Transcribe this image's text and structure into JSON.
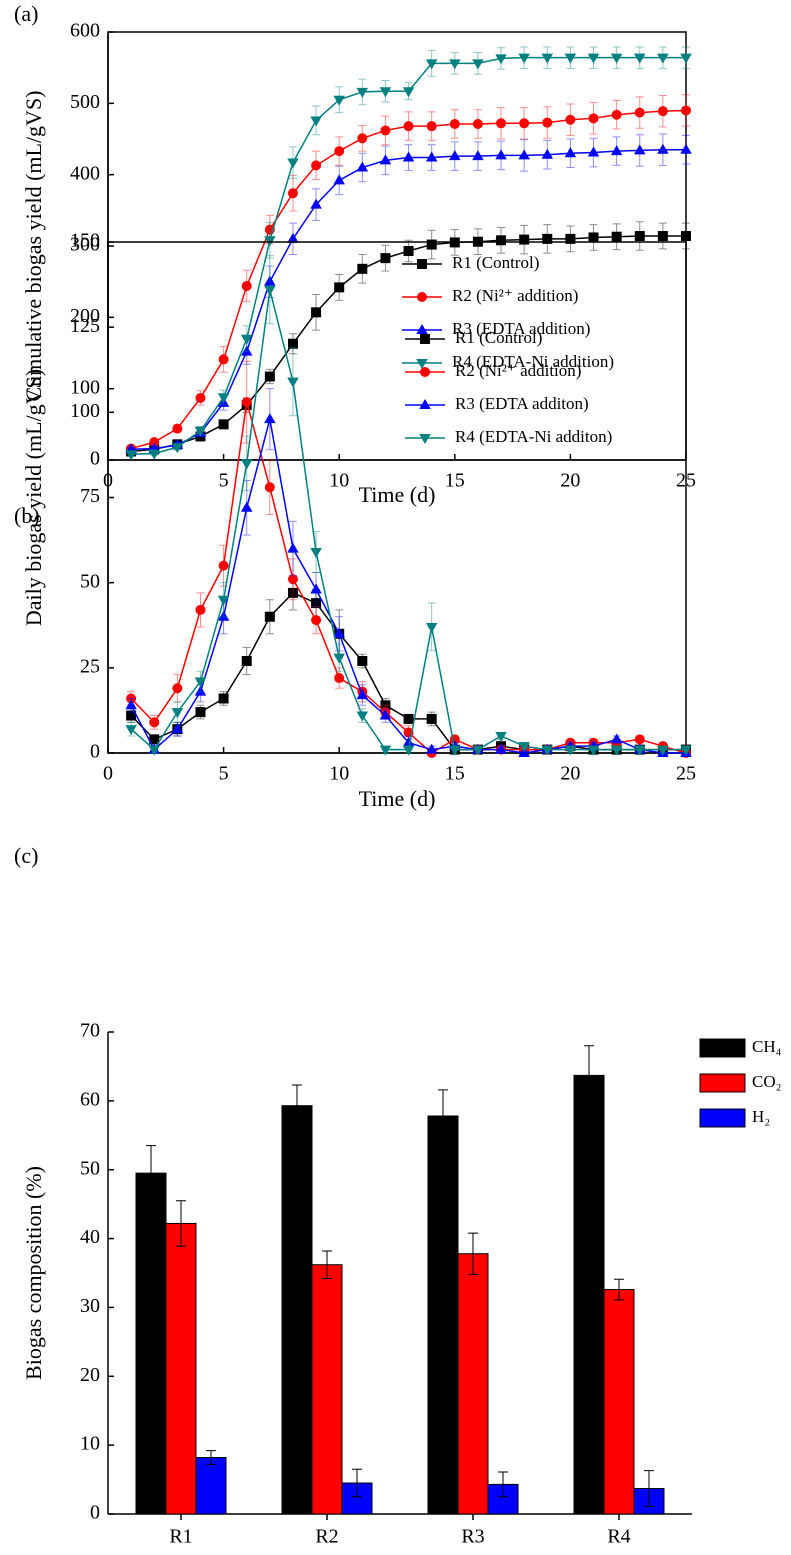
{
  "chart_data": [
    {
      "type": "line",
      "label": "(a)",
      "xlabel": "Time (d)",
      "ylabel": "Cumulative biogas yield (mL/gVS)",
      "xlim": [
        0,
        25
      ],
      "xticks": [
        0,
        5,
        10,
        15,
        20,
        25
      ],
      "ylim": [
        0,
        600
      ],
      "yticks": [
        0,
        100,
        200,
        300,
        400,
        500,
        600
      ],
      "legend": "lower right",
      "x": [
        1,
        2,
        3,
        4,
        5,
        6,
        7,
        8,
        9,
        10,
        11,
        12,
        13,
        14,
        15,
        16,
        17,
        18,
        19,
        20,
        21,
        22,
        23,
        24,
        25
      ],
      "series": [
        {
          "name": "R1 (Control)",
          "color": "#000000",
          "marker": "square",
          "values": [
            12,
            15,
            22,
            33,
            50,
            77,
            117,
            163,
            207,
            242,
            268,
            283,
            293,
            302,
            305,
            306,
            308,
            309,
            310,
            310,
            312,
            313,
            314,
            314,
            314
          ],
          "errors": [
            3,
            3,
            4,
            5,
            6,
            10,
            10,
            14,
            25,
            18,
            20,
            18,
            15,
            20,
            18,
            18,
            18,
            20,
            20,
            18,
            18,
            18,
            20,
            18,
            18
          ]
        },
        {
          "name": "R2 (Ni²⁺ addition)",
          "color": "#ff0000",
          "marker": "circle",
          "values": [
            16,
            25,
            44,
            87,
            141,
            244,
            323,
            374,
            413,
            433,
            451,
            462,
            468,
            468,
            471,
            471,
            472,
            472,
            473,
            477,
            479,
            484,
            487,
            489,
            490
          ],
          "errors": [
            3,
            4,
            5,
            10,
            18,
            22,
            20,
            25,
            20,
            20,
            18,
            20,
            20,
            20,
            20,
            20,
            22,
            22,
            22,
            22,
            22,
            20,
            22,
            22,
            22
          ]
        },
        {
          "name": "R3 (EDTA additon)",
          "color": "#0000ff",
          "marker": "triangle-up",
          "values": [
            15,
            16,
            21,
            38,
            80,
            152,
            250,
            310,
            358,
            392,
            410,
            420,
            424,
            424,
            426,
            426,
            427,
            427,
            428,
            430,
            431,
            433,
            434,
            435,
            435
          ],
          "errors": [
            3,
            3,
            4,
            5,
            10,
            18,
            22,
            22,
            22,
            20,
            20,
            20,
            18,
            18,
            20,
            20,
            20,
            22,
            20,
            20,
            20,
            20,
            22,
            22,
            20
          ]
        },
        {
          "name": "R4 (EDTA-Ni additon)",
          "color": "#008080",
          "marker": "triangle-down",
          "values": [
            8,
            9,
            18,
            41,
            88,
            170,
            308,
            417,
            476,
            505,
            516,
            517,
            517,
            556,
            556,
            556,
            563,
            564,
            564,
            564,
            564,
            564,
            564,
            564,
            564
          ],
          "errors": [
            3,
            3,
            4,
            6,
            10,
            18,
            25,
            22,
            20,
            18,
            18,
            15,
            12,
            18,
            15,
            15,
            15,
            15,
            15,
            15,
            15,
            15,
            15,
            15,
            15
          ]
        }
      ]
    },
    {
      "type": "line",
      "label": "(b)",
      "xlabel": "Time (d)",
      "ylabel": "Daily biogas yield (mL/gVS)",
      "xlim": [
        0,
        25
      ],
      "xticks": [
        0,
        5,
        10,
        15,
        20,
        25
      ],
      "ylim": [
        0,
        150
      ],
      "yticks": [
        0,
        25,
        50,
        75,
        100,
        125,
        150
      ],
      "legend": "upper right",
      "x": [
        1,
        2,
        3,
        4,
        5,
        6,
        7,
        8,
        9,
        10,
        11,
        12,
        13,
        14,
        15,
        16,
        17,
        18,
        19,
        20,
        21,
        22,
        23,
        24,
        25
      ],
      "series": [
        {
          "name": "R1 (Control)",
          "color": "#000000",
          "marker": "square",
          "values": [
            11,
            4,
            7,
            12,
            16,
            27,
            40,
            47,
            44,
            35,
            27,
            14,
            10,
            10,
            1,
            1,
            2,
            1,
            1,
            2,
            1,
            1,
            1,
            1,
            1
          ],
          "errors": [
            2,
            1,
            2,
            2,
            2,
            4,
            5,
            5,
            4,
            7,
            2,
            2,
            1,
            2,
            1,
            1,
            1,
            1,
            1,
            1,
            1,
            1,
            1,
            1,
            1
          ]
        },
        {
          "name": "R2 (Ni²⁺ addition)",
          "color": "#ff0000",
          "marker": "circle",
          "values": [
            16,
            9,
            19,
            42,
            55,
            103,
            78,
            51,
            39,
            22,
            18,
            12,
            6,
            0,
            4,
            1,
            1,
            1,
            1,
            3,
            3,
            3,
            4,
            2,
            0
          ],
          "errors": [
            2,
            2,
            4,
            5,
            6,
            12,
            8,
            6,
            4,
            3,
            3,
            2,
            2,
            1,
            1,
            1,
            1,
            1,
            1,
            1,
            1,
            1,
            1,
            1,
            1
          ]
        },
        {
          "name": "R3 (EDTA addition)",
          "color": "#0000ff",
          "marker": "triangle-up",
          "values": [
            14,
            1,
            7,
            18,
            40,
            72,
            98,
            60,
            48,
            35,
            17,
            11,
            3,
            1,
            2,
            1,
            1,
            0,
            1,
            2,
            2,
            4,
            1,
            0,
            0
          ],
          "errors": [
            2,
            1,
            2,
            3,
            5,
            8,
            9,
            8,
            5,
            5,
            3,
            2,
            2,
            1,
            1,
            1,
            1,
            1,
            1,
            1,
            1,
            1,
            1,
            1,
            1
          ]
        },
        {
          "name": "R4 (EDTA-Ni addition)",
          "color": "#008080",
          "marker": "triangle-down",
          "values": [
            7,
            1,
            12,
            21,
            45,
            85,
            136,
            109,
            59,
            28,
            11,
            1,
            1,
            37,
            1,
            1,
            5,
            2,
            1,
            1,
            1,
            1,
            1,
            1,
            1
          ],
          "errors": [
            2,
            1,
            3,
            3,
            5,
            8,
            10,
            10,
            6,
            4,
            2,
            1,
            1,
            7,
            1,
            1,
            1,
            1,
            1,
            1,
            1,
            1,
            1,
            1,
            1
          ]
        }
      ]
    },
    {
      "type": "bar",
      "label": "(c)",
      "ylabel": "Biogas composition (%)",
      "ylim": [
        0,
        70
      ],
      "yticks": [
        0,
        10,
        20,
        30,
        40,
        50,
        60,
        70
      ],
      "legend": "right outside",
      "categories": [
        "R1",
        "R2",
        "R3",
        "R4"
      ],
      "series": [
        {
          "name": "CH₄",
          "color": "#000000",
          "values": [
            49.5,
            59.3,
            57.8,
            63.7
          ],
          "errors": [
            4,
            3,
            3.8,
            4.3
          ]
        },
        {
          "name": "CO₂",
          "color": "#ff0000",
          "values": [
            42.2,
            36.2,
            37.8,
            32.6
          ],
          "errors": [
            3.3,
            2,
            3,
            1.5
          ]
        },
        {
          "name": "H₂",
          "color": "#0000ff",
          "values": [
            8.2,
            4.5,
            4.3,
            3.7
          ],
          "errors": [
            1,
            2,
            1.8,
            2.6
          ]
        }
      ]
    }
  ]
}
